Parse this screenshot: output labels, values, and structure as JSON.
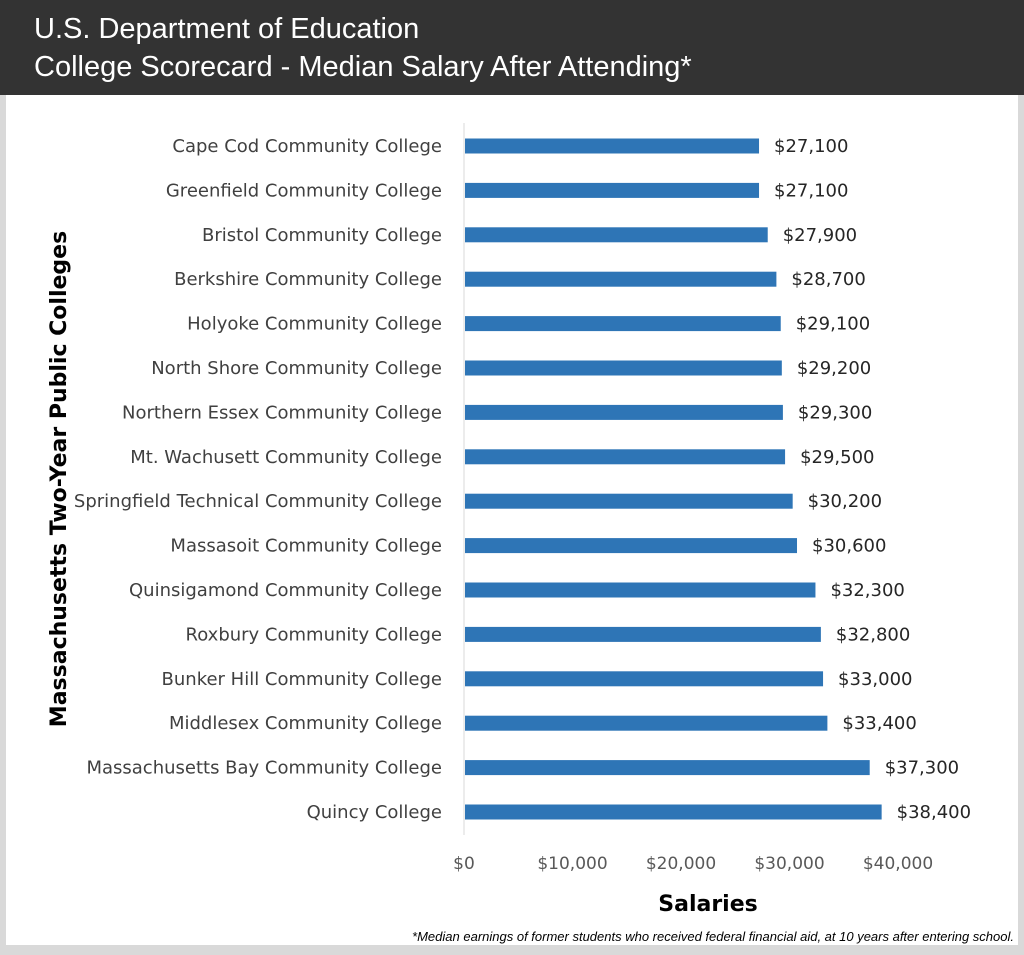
{
  "header": {
    "title_line1": "U.S. Department of Education",
    "title_line2": "College Scorecard - Median Salary After Attending*"
  },
  "footnote": "*Median earnings of former students who received federal financial aid, at 10 years after entering school.",
  "chart_data": {
    "type": "bar",
    "orientation": "horizontal",
    "title": "College Scorecard - Median Salary After Attending*",
    "xlabel": "Salaries",
    "ylabel": "Massachusetts Two-Year Public Colleges",
    "xlim": [
      0,
      40000
    ],
    "x_ticks": [
      0,
      10000,
      20000,
      30000,
      40000
    ],
    "x_tick_labels": [
      "$0",
      "$10,000",
      "$20,000",
      "$30,000",
      "$40,000"
    ],
    "categories": [
      "Cape Cod Community College",
      "Greenfield Community College",
      "Bristol Community College",
      "Berkshire Community College",
      "Holyoke Community College",
      "North Shore Community College",
      "Northern Essex Community College",
      "Mt. Wachusett Community College",
      "Springfield Technical Community College",
      "Massasoit Community College",
      "Quinsigamond Community College",
      "Roxbury Community College",
      "Bunker Hill Community College",
      "Middlesex Community College",
      "Massachusetts Bay Community College",
      "Quincy College"
    ],
    "values": [
      27100,
      27100,
      27900,
      28700,
      29100,
      29200,
      29300,
      29500,
      30200,
      30600,
      32300,
      32800,
      33000,
      33400,
      37300,
      38400
    ],
    "value_labels": [
      "$27,100",
      "$27,100",
      "$27,900",
      "$28,700",
      "$29,100",
      "$29,200",
      "$29,300",
      "$29,500",
      "$30,200",
      "$30,600",
      "$32,300",
      "$32,800",
      "$33,000",
      "$33,400",
      "$37,300",
      "$38,400"
    ],
    "grid": false,
    "legend": "none",
    "bar_color": "#2e75b6"
  }
}
